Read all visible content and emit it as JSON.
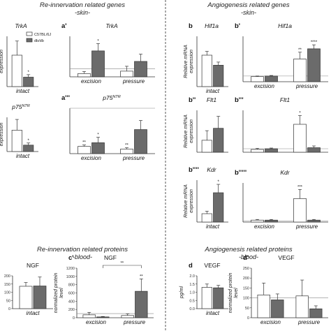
{
  "colors": {
    "control": "#ffffff",
    "dbdb": "#6b6b6b",
    "axis": "#333333",
    "dashed": "#555555",
    "baseline": "#888888"
  },
  "section_titles": [
    {
      "title": "Re-innervation related genes",
      "subtitle": "-skin-"
    },
    {
      "title": "Angiogenesis related genes",
      "subtitle": "-skin-"
    },
    {
      "title": "Re-innervation related proteins",
      "subtitle": "-blood-"
    },
    {
      "title": "Angiogenesis related proteins",
      "subtitle": "-blood-"
    }
  ],
  "legend": {
    "items": [
      "C57BL/6J",
      "db/db"
    ]
  },
  "chart_data": [
    {
      "id": "a",
      "type": "bar",
      "panel_label": "",
      "title": "TrkA",
      "ylabel": "expression",
      "categories": [
        "intact"
      ],
      "ylim": [
        0,
        1.6
      ],
      "yticks": [],
      "series": [
        {
          "name": "C57BL/6J",
          "values": [
            1.0
          ],
          "errors": [
            0.45
          ]
        },
        {
          "name": "db/db",
          "values": [
            0.3
          ],
          "errors": [
            0.08
          ]
        }
      ],
      "annotations": [
        {
          "category": 0,
          "series": 1,
          "text": "*"
        }
      ]
    },
    {
      "id": "a1",
      "type": "bar",
      "panel_label": "a'",
      "title": "TrkA",
      "ylabel": "",
      "categories": [
        "excision",
        "pressure"
      ],
      "ylim": [
        0,
        5
      ],
      "yticks": [],
      "reference_line": 1,
      "series": [
        {
          "name": "C57BL/6J",
          "values": [
            0.4,
            0.7
          ],
          "errors": [
            0.25,
            0.6
          ]
        },
        {
          "name": "db/db",
          "values": [
            3.2,
            1.9
          ],
          "errors": [
            0.9,
            0.9
          ]
        }
      ],
      "annotations": [
        {
          "category": 0,
          "series": 1,
          "text": "*"
        }
      ]
    },
    {
      "id": "a2",
      "type": "bar",
      "panel_label": "",
      "title": "p75NTR",
      "ylabel": "expression",
      "categories": [
        "intact"
      ],
      "ylim": [
        0,
        1.6
      ],
      "yticks": [],
      "series": [
        {
          "name": "C57BL/6J",
          "values": [
            1.0
          ],
          "errors": [
            0.5
          ]
        },
        {
          "name": "db/db",
          "values": [
            0.3
          ],
          "errors": [
            0.1
          ]
        }
      ],
      "annotations": [
        {
          "category": 0,
          "series": 1,
          "text": "*"
        }
      ]
    },
    {
      "id": "a3",
      "type": "bar",
      "panel_label": "a'''",
      "title": "p75NTR",
      "ylabel": "",
      "categories": [
        "excision",
        "pressure"
      ],
      "ylim": [
        0,
        1
      ],
      "yticks": [],
      "reference_line": 1,
      "series": [
        {
          "name": "C57BL/6J",
          "values": [
            0.16,
            0.1
          ],
          "errors": [
            0.03,
            0.03
          ]
        },
        {
          "name": "db/db",
          "values": [
            0.24,
            0.53
          ],
          "errors": [
            0.12,
            0.2
          ]
        }
      ],
      "annotations": [
        {
          "category": 0,
          "series": 0,
          "text": "**"
        },
        {
          "category": 0,
          "series": 1,
          "text": "*"
        },
        {
          "category": 1,
          "series": 0,
          "text": "**"
        }
      ]
    },
    {
      "id": "b",
      "type": "bar",
      "panel_label": "b",
      "title": "Hif1a",
      "ylabel": "Relative mRNA expression",
      "categories": [
        "intact"
      ],
      "ylim": [
        0,
        1.6
      ],
      "yticks": [],
      "series": [
        {
          "name": "C57BL/6J",
          "values": [
            1.0
          ],
          "errors": [
            0.12
          ]
        },
        {
          "name": "db/db",
          "values": [
            0.68
          ],
          "errors": [
            0.1
          ]
        }
      ],
      "annotations": []
    },
    {
      "id": "b1",
      "type": "bar",
      "panel_label": "b'",
      "title": "Hif1a",
      "ylabel": "",
      "categories": [
        "excision",
        "pressure"
      ],
      "ylim": [
        0,
        8
      ],
      "yticks": [],
      "reference_line": 1,
      "series": [
        {
          "name": "C57BL/6J",
          "values": [
            0.9,
            4.0
          ],
          "errors": [
            0.1,
            1.2
          ]
        },
        {
          "name": "db/db",
          "values": [
            1.0,
            5.8
          ],
          "errors": [
            0.1,
            0.7
          ]
        }
      ],
      "annotations": [
        {
          "category": 1,
          "series": 0,
          "text": "**"
        },
        {
          "category": 1,
          "series": 1,
          "text": "****"
        }
      ]
    },
    {
      "id": "b2",
      "type": "bar",
      "panel_label": "b''",
      "title": "Flt1",
      "ylabel": "Relative mRNA expression",
      "categories": [
        ""
      ],
      "ylim": [
        0,
        3.5
      ],
      "yticks": [],
      "series": [
        {
          "name": "C57BL/6J",
          "values": [
            1.0
          ],
          "errors": [
            0.8
          ]
        },
        {
          "name": "db/db",
          "values": [
            2.0
          ],
          "errors": [
            1.0
          ]
        }
      ],
      "annotations": []
    },
    {
      "id": "b3",
      "type": "bar",
      "panel_label": "b'''",
      "title": "Flt1",
      "ylabel": "",
      "categories": [
        "",
        ""
      ],
      "ylim": [
        0,
        12
      ],
      "yticks": [],
      "reference_line": 1,
      "series": [
        {
          "name": "C57BL/6J",
          "values": [
            0.8,
            8.0
          ],
          "errors": [
            0.3,
            2.5
          ]
        },
        {
          "name": "db/db",
          "values": [
            1.0,
            1.3
          ],
          "errors": [
            0.2,
            0.5
          ]
        }
      ],
      "annotations": [
        {
          "category": 1,
          "series": 0,
          "text": "*"
        }
      ]
    },
    {
      "id": "b4",
      "type": "bar",
      "panel_label": "b''''",
      "title": "Kdr",
      "ylabel": "Relative mRNA expression",
      "categories": [
        "intact"
      ],
      "ylim": [
        0,
        5
      ],
      "yticks": [],
      "series": [
        {
          "name": "C57BL/6J",
          "values": [
            1.0
          ],
          "errors": [
            0.3
          ]
        },
        {
          "name": "db/db",
          "values": [
            3.5
          ],
          "errors": [
            1.0
          ]
        }
      ],
      "annotations": [
        {
          "category": 0,
          "series": 1,
          "text": "*"
        }
      ]
    },
    {
      "id": "b5",
      "type": "bar",
      "panel_label": "b'''''",
      "title": "Kdr",
      "ylabel": "",
      "categories": [
        "excision",
        "pressure"
      ],
      "ylim": [
        0,
        30
      ],
      "yticks": [],
      "reference_line": 1,
      "series": [
        {
          "name": "C57BL/6J",
          "values": [
            1.5,
            18.0
          ],
          "errors": [
            0.5,
            7.0
          ]
        },
        {
          "name": "db/db",
          "values": [
            1.5,
            1.5
          ],
          "errors": [
            0.5,
            0.5
          ]
        }
      ],
      "annotations": [
        {
          "category": 1,
          "series": 0,
          "text": "***"
        }
      ]
    },
    {
      "id": "c",
      "type": "bar",
      "panel_label": "",
      "title": "NGF",
      "ylabel": "",
      "categories": [
        "intact"
      ],
      "ylim": [
        0,
        220
      ],
      "yticks": [
        "0",
        "50",
        "100",
        "150",
        "200"
      ],
      "series": [
        {
          "name": "C57BL/6J",
          "values": [
            150
          ],
          "errors": [
            25
          ]
        },
        {
          "name": "db/db",
          "values": [
            152
          ],
          "errors": [
            60
          ]
        }
      ],
      "annotations": []
    },
    {
      "id": "c1",
      "type": "bar",
      "panel_label": "c'",
      "title": "NGF",
      "ylabel": "normalized protein level",
      "categories": [
        "excision",
        "pressure"
      ],
      "ylim": [
        0,
        1200
      ],
      "yticks": [
        "0",
        "200",
        "400",
        "600",
        "800",
        "1000",
        "1200"
      ],
      "reference_line": 100,
      "series": [
        {
          "name": "C57BL/6J",
          "values": [
            70,
            55
          ],
          "errors": [
            60,
            40
          ]
        },
        {
          "name": "db/db",
          "values": [
            20,
            640
          ],
          "errors": [
            10,
            300
          ]
        }
      ],
      "annotations": [
        {
          "category": 1,
          "series": 1,
          "text": "**"
        }
      ],
      "brackets": [
        {
          "from": [
            0,
            1
          ],
          "to": [
            1,
            1
          ],
          "text": "**"
        }
      ]
    },
    {
      "id": "d",
      "type": "bar",
      "panel_label": "d",
      "title": "VEGF",
      "ylabel": "pg/ml",
      "categories": [
        "intact"
      ],
      "ylim": [
        0,
        2.0
      ],
      "yticks": [
        "0.0",
        "0.5",
        "1.0",
        "1.5",
        "2.0"
      ],
      "series": [
        {
          "name": "C57BL/6J",
          "values": [
            1.3
          ],
          "errors": [
            0.2
          ]
        },
        {
          "name": "db/db",
          "values": [
            1.27
          ],
          "errors": [
            0.15
          ]
        }
      ],
      "annotations": []
    },
    {
      "id": "d1",
      "type": "bar",
      "panel_label": "d'",
      "title": "VEGF",
      "ylabel": "normalized protein level",
      "categories": [
        "excision",
        "pressure"
      ],
      "ylim": [
        0,
        250
      ],
      "yticks": [
        "0",
        "50",
        "100",
        "150",
        "200",
        "250"
      ],
      "reference_line": 100,
      "series": [
        {
          "name": "C57BL/6J",
          "values": [
            115,
            110
          ],
          "errors": [
            60,
            80
          ]
        },
        {
          "name": "db/db",
          "values": [
            90,
            45
          ],
          "errors": [
            30,
            15
          ]
        }
      ],
      "annotations": []
    }
  ]
}
